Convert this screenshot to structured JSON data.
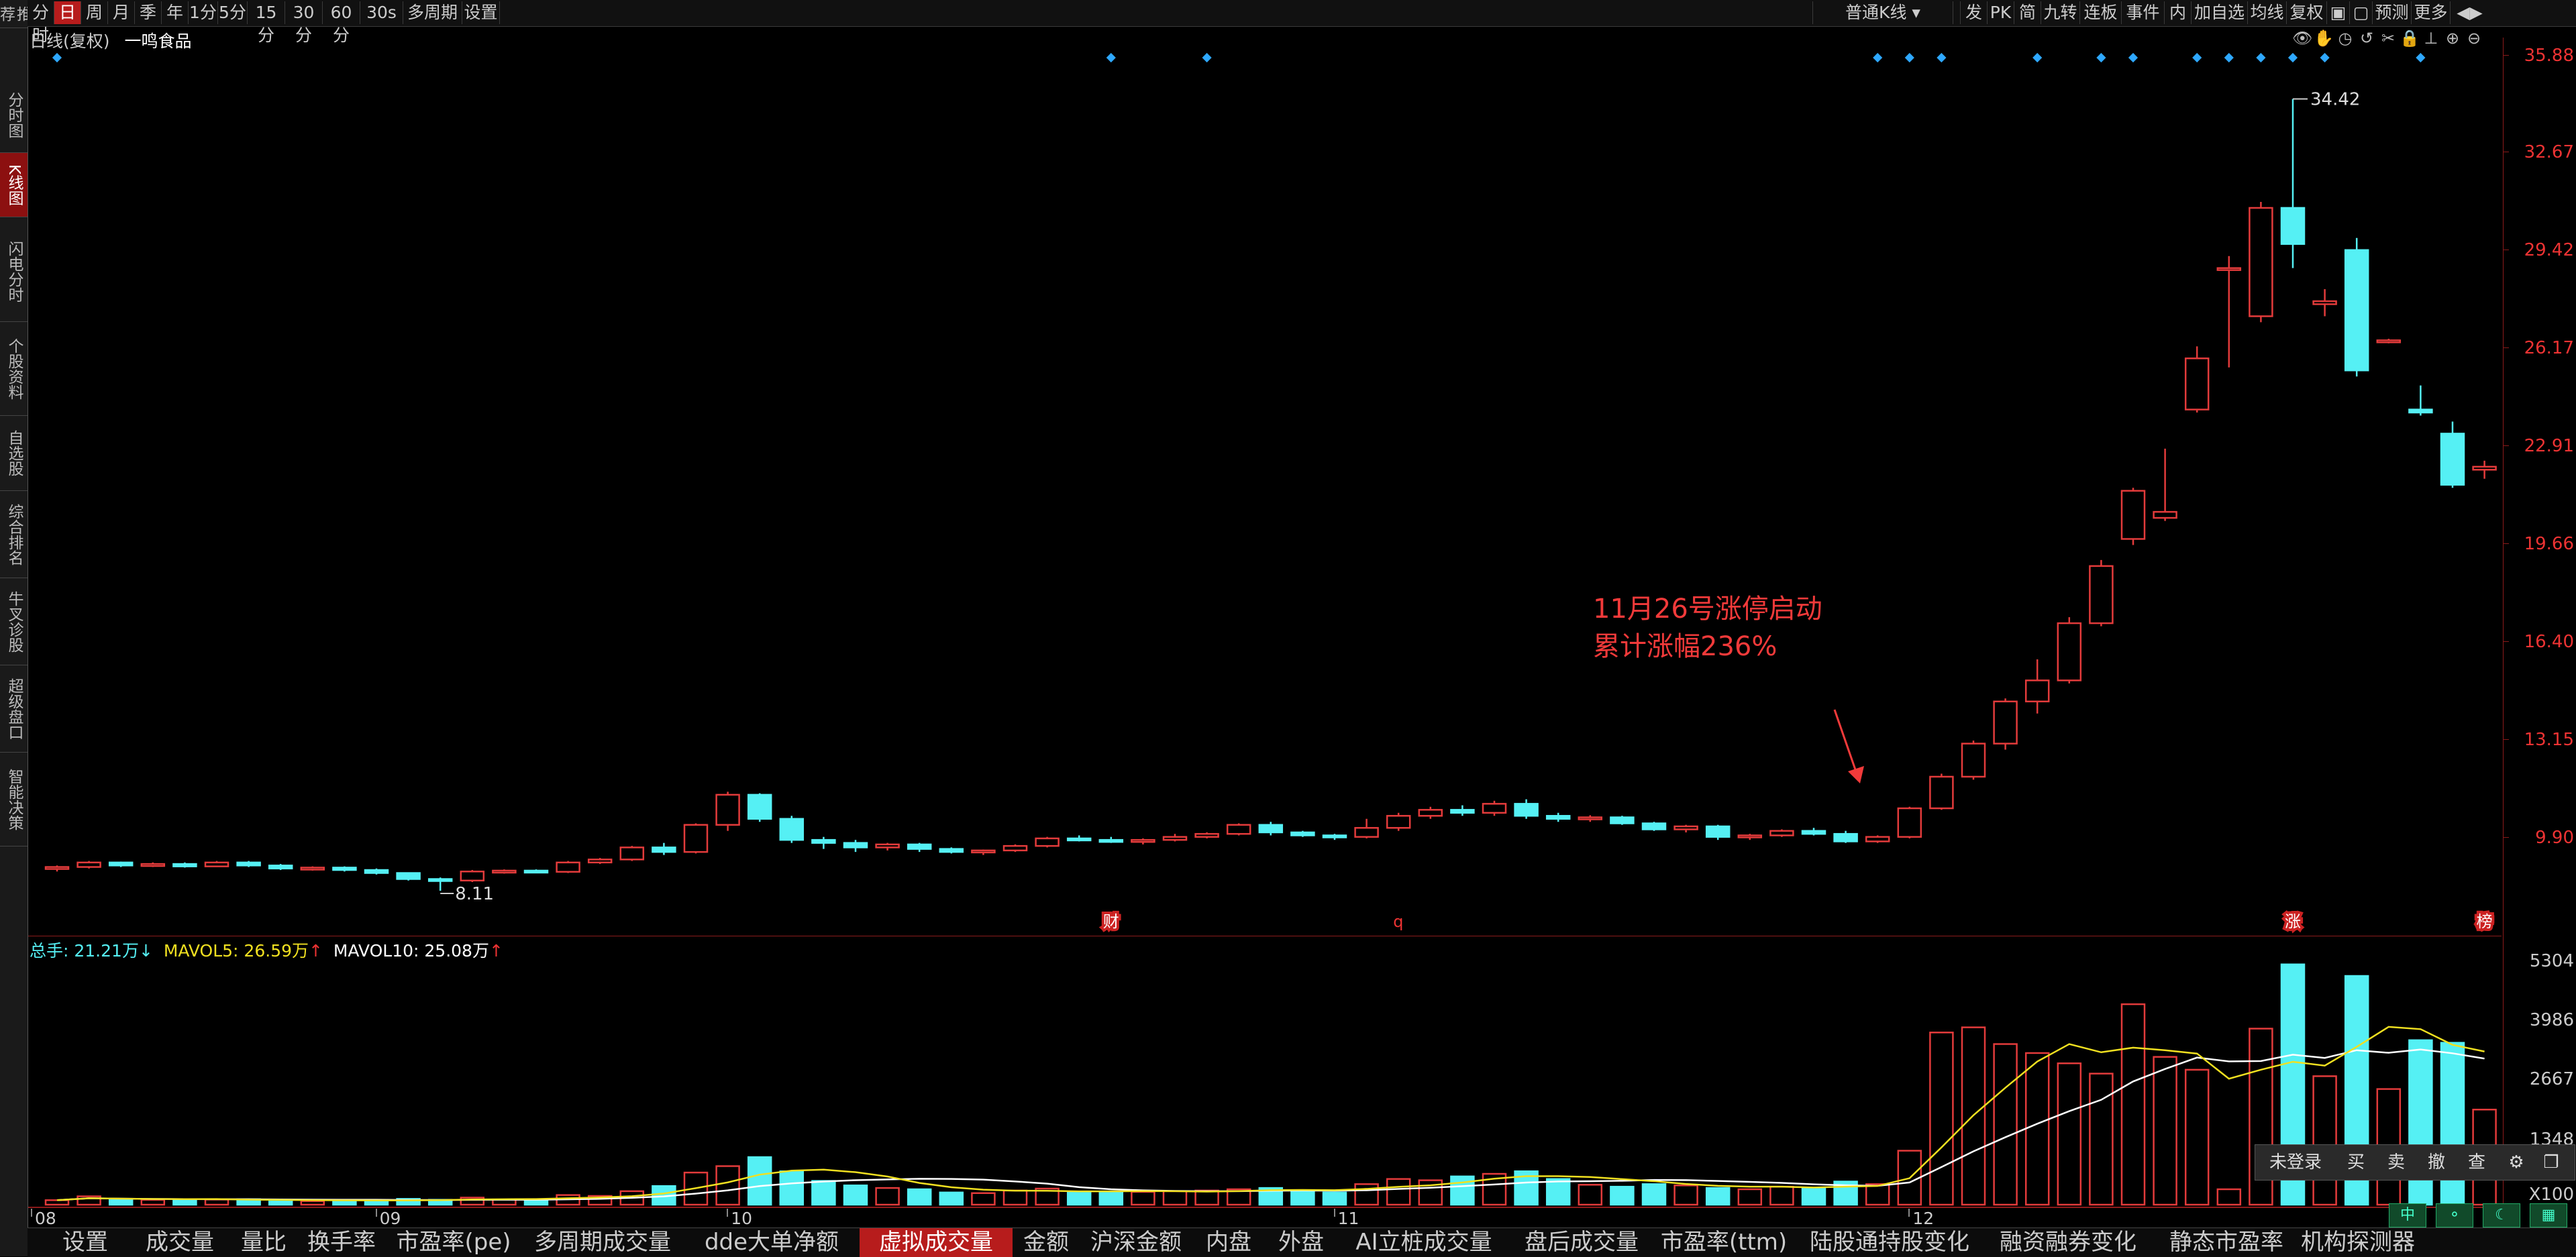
{
  "sidebar": {
    "items": [
      {
        "label": "推荐",
        "top": 0,
        "h": 42
      },
      {
        "label": "分时图",
        "top": 116,
        "h": 112
      },
      {
        "label": "K线图",
        "top": 228,
        "h": 96,
        "active": true
      },
      {
        "label": "闪电分时",
        "top": 330,
        "h": 150
      },
      {
        "label": "个股资料",
        "top": 480,
        "h": 140
      },
      {
        "label": "自选股",
        "top": 620,
        "h": 112
      },
      {
        "label": "综合排名",
        "top": 732,
        "h": 130
      },
      {
        "label": "牛叉诊股",
        "top": 862,
        "h": 130
      },
      {
        "label": "超级盘口",
        "top": 992,
        "h": 130
      },
      {
        "label": "智能决策",
        "top": 1122,
        "h": 140
      }
    ]
  },
  "toolbar": {
    "periods": [
      "分时",
      "日",
      "周",
      "月",
      "季",
      "年",
      "1分",
      "5分",
      "15分",
      "30分",
      "60分",
      "30s",
      "多周期",
      "设置"
    ],
    "active_period": "日",
    "kline_type": "普通K线",
    "right_buttons": [
      "发",
      "PK",
      "简",
      "九转",
      "连板",
      "事件",
      "内",
      "加自选",
      "均线",
      "复权",
      "",
      "",
      "预测",
      "更多"
    ]
  },
  "title": {
    "period_label": "日线(复权)",
    "stock_name": "一鸣食品"
  },
  "price_axis": {
    "labels": [
      "35.88",
      "32.67",
      "29.42",
      "26.17",
      "22.91",
      "19.66",
      "16.40",
      "13.15",
      "9.90"
    ]
  },
  "volume_axis": {
    "labels": [
      "5304",
      "3986",
      "2667",
      "1348",
      "X100"
    ]
  },
  "volume_legend": {
    "total": "总手: 21.21万",
    "total_arrow": "↓",
    "ma5": "MAVOL5: 26.59万",
    "ma5_arrow": "↑",
    "ma10": "MAVOL10: 25.08万",
    "ma10_arrow": "↑"
  },
  "x_axis": {
    "labels": [
      "08",
      "09",
      "10",
      "11",
      "12"
    ]
  },
  "markers": {
    "high_label": "34.42",
    "low_label": "8.11",
    "events": [
      "财",
      "q",
      "涨",
      "榜"
    ]
  },
  "annotation": {
    "line1": "11月26号涨停启动",
    "line2": "累计涨幅236%"
  },
  "trade_panel": {
    "login": "未登录",
    "buy": "买",
    "sell": "卖",
    "cancel": "撤",
    "query": "查"
  },
  "bottom_tabs": [
    "设置",
    "成交量",
    "量比",
    "换手率",
    "市盈率(pe)",
    "多周期成交量",
    "dde大单净额",
    "虚拟成交量",
    "金额",
    "沪深金额",
    "内盘",
    "外盘",
    "AI立桩成交量",
    "盘后成交量",
    "市盈率(ttm)",
    "陆股通持股变化",
    "融资融券变化",
    "静态市盈率",
    "机构探测器"
  ],
  "active_tab": "虚拟成交量",
  "colors": {
    "up": "#e33b3b",
    "down": "#55f0f4",
    "ma5": "#f0e020",
    "ma10": "#ffffff",
    "annotation": "#f23a3a",
    "marker": "#2ea8ff"
  },
  "chart_data": {
    "type": "candlestick",
    "y_range": [
      8.11,
      35.88
    ],
    "candles": [
      {
        "o": 8.85,
        "h": 8.95,
        "l": 8.75,
        "c": 8.9,
        "v": 35
      },
      {
        "o": 8.9,
        "h": 9.1,
        "l": 8.85,
        "c": 9.05,
        "v": 65
      },
      {
        "o": 9.05,
        "h": 9.08,
        "l": 8.9,
        "c": 8.95,
        "v": 40
      },
      {
        "o": 8.95,
        "h": 9.05,
        "l": 8.9,
        "c": 9.0,
        "v": 38
      },
      {
        "o": 9.0,
        "h": 9.05,
        "l": 8.88,
        "c": 8.92,
        "v": 36
      },
      {
        "o": 8.92,
        "h": 9.1,
        "l": 8.9,
        "c": 9.05,
        "v": 40
      },
      {
        "o": 9.05,
        "h": 9.1,
        "l": 8.9,
        "c": 8.95,
        "v": 42
      },
      {
        "o": 8.95,
        "h": 9.0,
        "l": 8.8,
        "c": 8.85,
        "v": 30
      },
      {
        "o": 8.85,
        "h": 8.92,
        "l": 8.78,
        "c": 8.88,
        "v": 28
      },
      {
        "o": 8.88,
        "h": 8.92,
        "l": 8.75,
        "c": 8.8,
        "v": 30
      },
      {
        "o": 8.8,
        "h": 8.85,
        "l": 8.65,
        "c": 8.7,
        "v": 35
      },
      {
        "o": 8.7,
        "h": 8.72,
        "l": 8.45,
        "c": 8.5,
        "v": 45
      },
      {
        "o": 8.5,
        "h": 8.55,
        "l": 8.11,
        "c": 8.45,
        "v": 38
      },
      {
        "o": 8.45,
        "h": 8.8,
        "l": 8.4,
        "c": 8.75,
        "v": 55
      },
      {
        "o": 8.75,
        "h": 8.82,
        "l": 8.68,
        "c": 8.78,
        "v": 40
      },
      {
        "o": 8.78,
        "h": 8.82,
        "l": 8.7,
        "c": 8.74,
        "v": 42
      },
      {
        "o": 8.74,
        "h": 9.1,
        "l": 8.7,
        "c": 9.05,
        "v": 75
      },
      {
        "o": 9.05,
        "h": 9.2,
        "l": 9.0,
        "c": 9.15,
        "v": 68
      },
      {
        "o": 9.15,
        "h": 9.6,
        "l": 9.1,
        "c": 9.55,
        "v": 105
      },
      {
        "o": 9.55,
        "h": 9.7,
        "l": 9.3,
        "c": 9.4,
        "v": 145
      },
      {
        "o": 9.4,
        "h": 10.35,
        "l": 9.35,
        "c": 10.3,
        "v": 250
      },
      {
        "o": 10.3,
        "h": 11.4,
        "l": 10.1,
        "c": 11.3,
        "v": 300
      },
      {
        "o": 11.3,
        "h": 11.35,
        "l": 10.4,
        "c": 10.5,
        "v": 370
      },
      {
        "o": 10.5,
        "h": 10.6,
        "l": 9.7,
        "c": 9.8,
        "v": 260
      },
      {
        "o": 9.8,
        "h": 9.9,
        "l": 9.5,
        "c": 9.7,
        "v": 185
      },
      {
        "o": 9.7,
        "h": 9.8,
        "l": 9.4,
        "c": 9.55,
        "v": 150
      },
      {
        "o": 9.55,
        "h": 9.7,
        "l": 9.45,
        "c": 9.65,
        "v": 130
      },
      {
        "o": 9.65,
        "h": 9.7,
        "l": 9.4,
        "c": 9.5,
        "v": 120
      },
      {
        "o": 9.5,
        "h": 9.55,
        "l": 9.35,
        "c": 9.4,
        "v": 95
      },
      {
        "o": 9.4,
        "h": 9.48,
        "l": 9.3,
        "c": 9.45,
        "v": 90
      },
      {
        "o": 9.45,
        "h": 9.65,
        "l": 9.4,
        "c": 9.6,
        "v": 110
      },
      {
        "o": 9.6,
        "h": 9.9,
        "l": 9.55,
        "c": 9.85,
        "v": 125
      },
      {
        "o": 9.85,
        "h": 9.95,
        "l": 9.75,
        "c": 9.8,
        "v": 100
      },
      {
        "o": 9.8,
        "h": 9.9,
        "l": 9.7,
        "c": 9.75,
        "v": 95
      },
      {
        "o": 9.75,
        "h": 9.85,
        "l": 9.65,
        "c": 9.8,
        "v": 100
      },
      {
        "o": 9.8,
        "h": 10.0,
        "l": 9.75,
        "c": 9.9,
        "v": 105
      },
      {
        "o": 9.9,
        "h": 10.05,
        "l": 9.85,
        "c": 10.0,
        "v": 110
      },
      {
        "o": 10.0,
        "h": 10.35,
        "l": 9.95,
        "c": 10.3,
        "v": 120
      },
      {
        "o": 10.3,
        "h": 10.4,
        "l": 9.95,
        "c": 10.05,
        "v": 130
      },
      {
        "o": 10.05,
        "h": 10.1,
        "l": 9.9,
        "c": 9.95,
        "v": 110
      },
      {
        "o": 9.95,
        "h": 10.0,
        "l": 9.8,
        "c": 9.9,
        "v": 95
      },
      {
        "o": 9.9,
        "h": 10.5,
        "l": 9.85,
        "c": 10.2,
        "v": 160
      },
      {
        "o": 10.2,
        "h": 10.7,
        "l": 10.1,
        "c": 10.6,
        "v": 200
      },
      {
        "o": 10.6,
        "h": 10.9,
        "l": 10.5,
        "c": 10.8,
        "v": 190
      },
      {
        "o": 10.8,
        "h": 10.95,
        "l": 10.6,
        "c": 10.7,
        "v": 220
      },
      {
        "o": 10.7,
        "h": 11.1,
        "l": 10.6,
        "c": 11.0,
        "v": 240
      },
      {
        "o": 11.0,
        "h": 11.15,
        "l": 10.5,
        "c": 10.6,
        "v": 260
      },
      {
        "o": 10.6,
        "h": 10.7,
        "l": 10.4,
        "c": 10.5,
        "v": 200
      },
      {
        "o": 10.5,
        "h": 10.62,
        "l": 10.4,
        "c": 10.55,
        "v": 155
      },
      {
        "o": 10.55,
        "h": 10.6,
        "l": 10.3,
        "c": 10.35,
        "v": 140
      },
      {
        "o": 10.35,
        "h": 10.4,
        "l": 10.1,
        "c": 10.15,
        "v": 160
      },
      {
        "o": 10.15,
        "h": 10.3,
        "l": 10.05,
        "c": 10.25,
        "v": 150
      },
      {
        "o": 10.25,
        "h": 10.3,
        "l": 9.8,
        "c": 9.9,
        "v": 130
      },
      {
        "o": 9.9,
        "h": 10.0,
        "l": 9.8,
        "c": 9.95,
        "v": 120
      },
      {
        "o": 9.95,
        "h": 10.15,
        "l": 9.9,
        "c": 10.1,
        "v": 140
      },
      {
        "o": 10.1,
        "h": 10.2,
        "l": 9.95,
        "c": 10.0,
        "v": 130
      },
      {
        "o": 10.0,
        "h": 10.1,
        "l": 9.7,
        "c": 9.75,
        "v": 180
      },
      {
        "o": 9.75,
        "h": 9.95,
        "l": 9.7,
        "c": 9.9,
        "v": 160
      },
      {
        "o": 9.9,
        "h": 10.9,
        "l": 9.85,
        "c": 10.85,
        "v": 420
      },
      {
        "o": 10.85,
        "h": 12.0,
        "l": 10.8,
        "c": 11.9,
        "v": 1340
      },
      {
        "o": 11.9,
        "h": 13.1,
        "l": 11.8,
        "c": 13.0,
        "v": 1380
      },
      {
        "o": 13.0,
        "h": 14.5,
        "l": 12.8,
        "c": 14.4,
        "v": 1250
      },
      {
        "o": 14.4,
        "h": 15.8,
        "l": 14.0,
        "c": 15.1,
        "v": 1180
      },
      {
        "o": 15.1,
        "h": 17.2,
        "l": 15.0,
        "c": 17.0,
        "v": 1100
      },
      {
        "o": 17.0,
        "h": 19.1,
        "l": 16.9,
        "c": 18.9,
        "v": 1020
      },
      {
        "o": 19.8,
        "h": 21.5,
        "l": 19.6,
        "c": 21.4,
        "v": 1560
      },
      {
        "o": 20.5,
        "h": 22.8,
        "l": 20.4,
        "c": 20.7,
        "v": 1150
      },
      {
        "o": 24.1,
        "h": 26.2,
        "l": 24.0,
        "c": 25.8,
        "v": 1050
      },
      {
        "o": 28.8,
        "h": 29.2,
        "l": 25.5,
        "c": 28.8,
        "v": 120
      },
      {
        "o": 27.2,
        "h": 31.0,
        "l": 27.0,
        "c": 30.8,
        "v": 1370
      },
      {
        "o": 30.8,
        "h": 34.42,
        "l": 28.8,
        "c": 29.6,
        "v": 1870
      },
      {
        "o": 27.6,
        "h": 28.1,
        "l": 27.2,
        "c": 27.7,
        "v": 1000
      },
      {
        "o": 29.4,
        "h": 29.8,
        "l": 25.2,
        "c": 25.4,
        "v": 1780
      },
      {
        "o": 26.4,
        "h": 26.45,
        "l": 26.3,
        "c": 26.4,
        "v": 900
      },
      {
        "o": 24.1,
        "h": 24.9,
        "l": 23.9,
        "c": 24.0,
        "v": 1280
      },
      {
        "o": 23.3,
        "h": 23.7,
        "l": 21.5,
        "c": 21.6,
        "v": 1260
      },
      {
        "o": 22.1,
        "h": 22.4,
        "l": 21.8,
        "c": 22.2,
        "v": 740
      }
    ]
  }
}
